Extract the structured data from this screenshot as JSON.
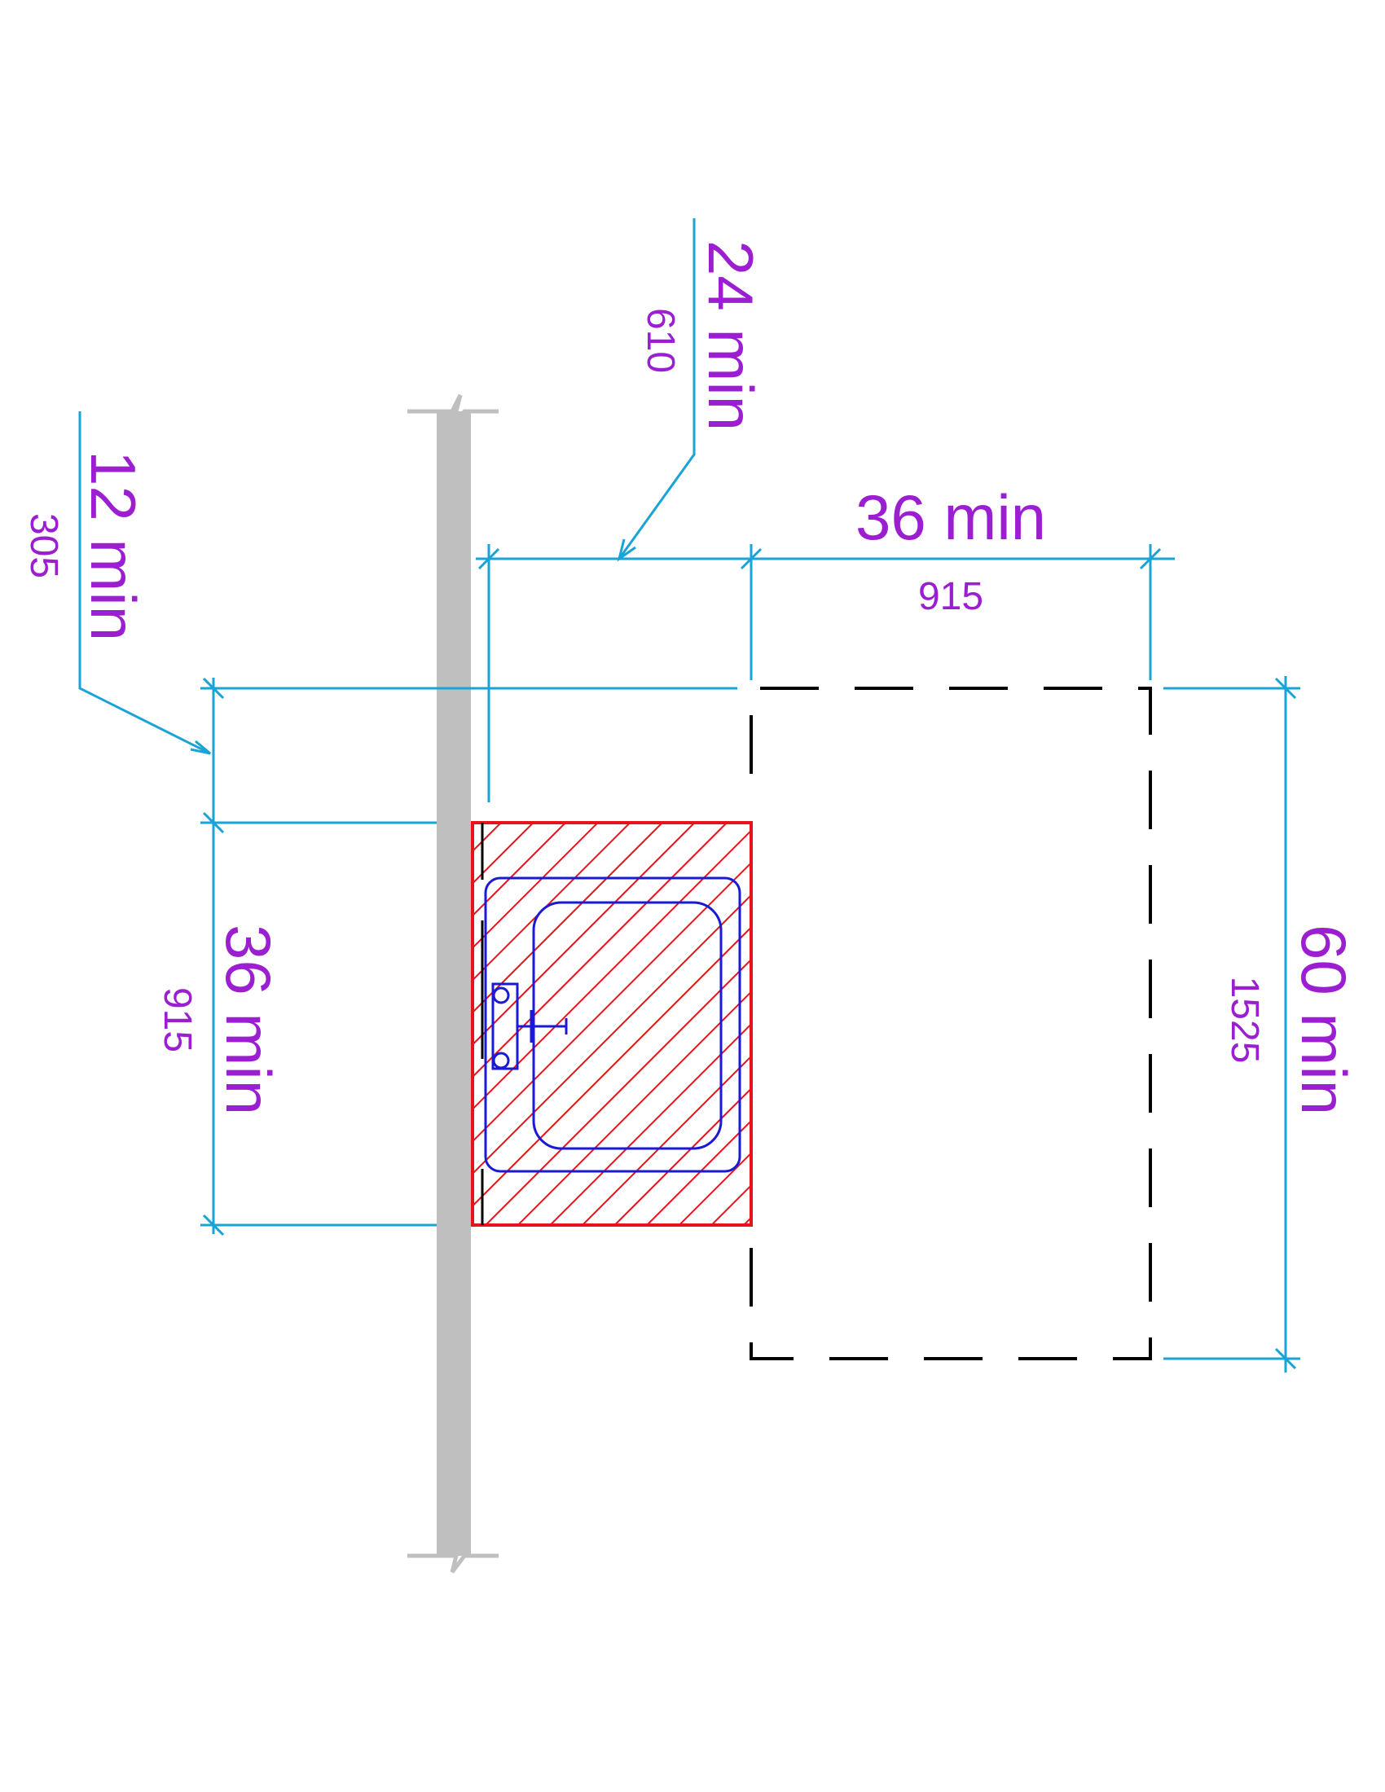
{
  "colors": {
    "dimension_line": "#19a3d6",
    "dimension_text": "#9b1fd1",
    "wall": "#bfbfbf",
    "restricted_zone": "#e8131a",
    "fixture": "#1a1ad6",
    "clear_space": "#000000"
  },
  "dimensions": {
    "clearance_36_depth": {
      "imperial": "36 min",
      "metric": "915"
    },
    "depth_24": {
      "imperial": "24 min",
      "metric": "610"
    },
    "side_12": {
      "imperial": "12 min",
      "metric": "305"
    },
    "width_36": {
      "imperial": "36 min",
      "metric": "915"
    },
    "length_60": {
      "imperial": "60 min",
      "metric": "1525"
    }
  }
}
